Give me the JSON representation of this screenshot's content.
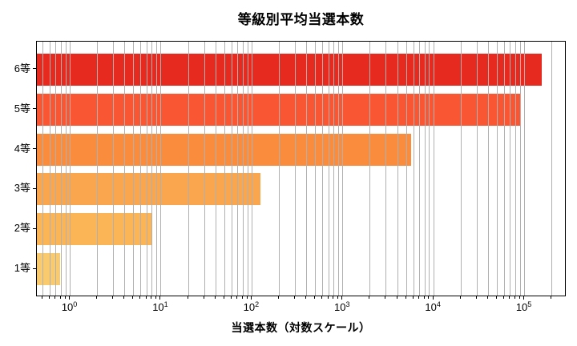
{
  "chart_data": {
    "type": "bar",
    "orientation": "horizontal",
    "title": "等級別平均当選本数",
    "xlabel": "当選本数（対数スケール）",
    "ylabel": "",
    "x_scale": "log",
    "xlim": [
      0.43,
      290000
    ],
    "x_ticks": [
      "10^0",
      "10^1",
      "10^2",
      "10^3",
      "10^4",
      "10^5"
    ],
    "categories": [
      "6等",
      "5等",
      "4等",
      "3等",
      "2等",
      "1等"
    ],
    "values": [
      155000,
      90000,
      5600,
      125,
      8,
      0.78
    ],
    "bar_colors": [
      "#e72a20",
      "#f95733",
      "#fa8c3e",
      "#faa64e",
      "#fbb557",
      "#faca6e"
    ],
    "grid": true,
    "grid_which": "both",
    "grid_color": "#b0b0b0",
    "legend": false,
    "spine_color": "#000000",
    "background": "#ffffff"
  }
}
